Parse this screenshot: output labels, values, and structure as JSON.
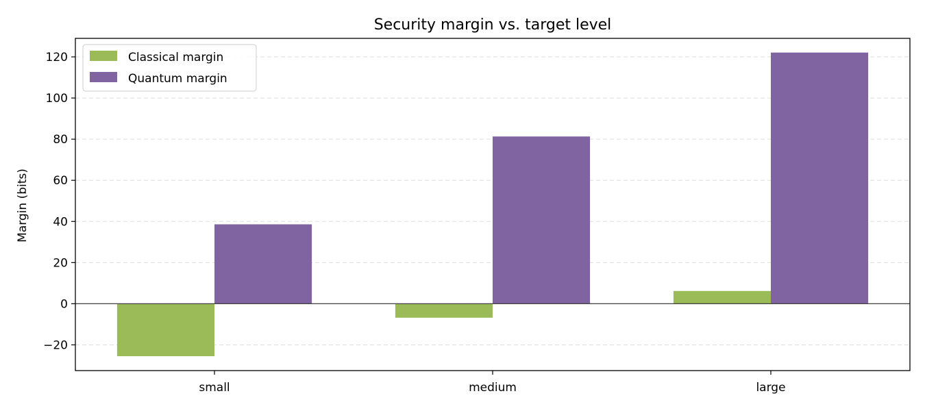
{
  "chart_data": {
    "type": "bar",
    "title": "Security margin vs. target level",
    "xlabel": "",
    "ylabel": "Margin (bits)",
    "categories": [
      "small",
      "medium",
      "large"
    ],
    "series": [
      {
        "name": "Classical margin",
        "values": [
          -25.5,
          -6.8,
          6.2
        ],
        "color": "#9bbb59"
      },
      {
        "name": "Quantum margin",
        "values": [
          38.6,
          81.3,
          122.1
        ],
        "color": "#8064a2"
      }
    ],
    "ylim": [
      -32.5,
      129
    ],
    "yticks": [
      -20,
      0,
      20,
      40,
      60,
      80,
      100,
      120
    ],
    "ytick_labels": [
      "−20",
      "0",
      "20",
      "40",
      "60",
      "80",
      "100",
      "120"
    ],
    "grid": "y-dashed",
    "zero_line": true,
    "legend_position": "top-left"
  }
}
